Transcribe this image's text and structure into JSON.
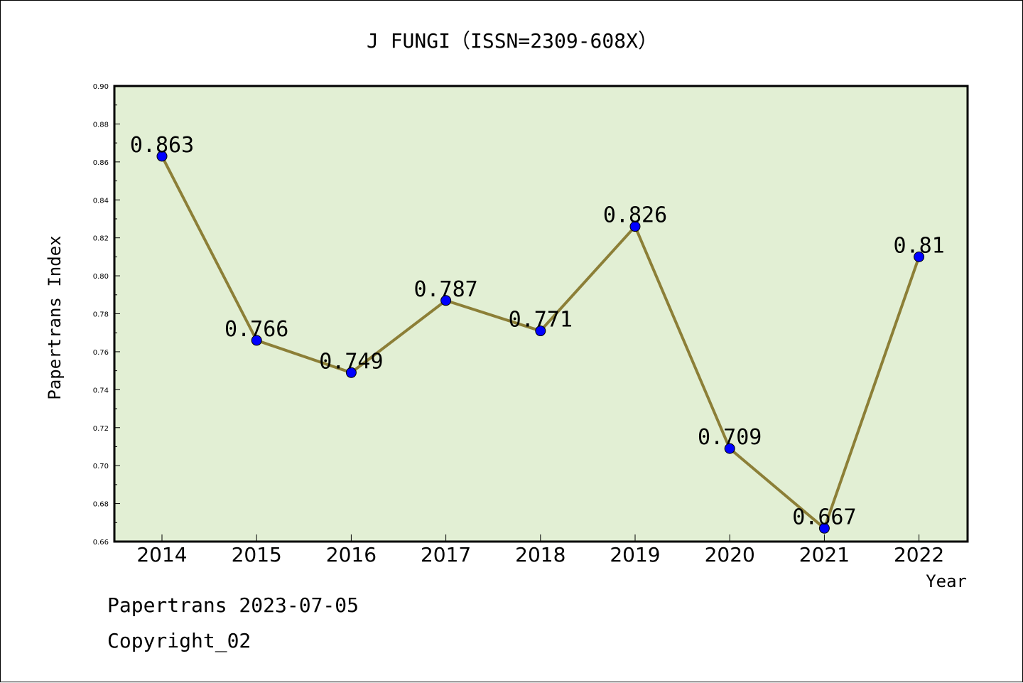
{
  "chart_data": {
    "type": "line",
    "title": "J FUNGI（ISSN=2309-608X）",
    "xlabel": "Year",
    "ylabel": "Papertrans Index",
    "categories": [
      "2014",
      "2015",
      "2016",
      "2017",
      "2018",
      "2019",
      "2020",
      "2021",
      "2022"
    ],
    "series": [
      {
        "values": [
          0.863,
          0.766,
          0.749,
          0.787,
          0.771,
          0.826,
          0.709,
          0.667,
          0.81
        ]
      }
    ],
    "data_labels": [
      "0.863",
      "0.766",
      "0.749",
      "0.787",
      "0.771",
      "0.826",
      "0.709",
      "0.667",
      "0.81"
    ],
    "ylim": [
      0.66,
      0.9
    ],
    "yticks": [
      "0.66",
      "0.68",
      "0.70",
      "0.72",
      "0.74",
      "0.76",
      "0.78",
      "0.80",
      "0.82",
      "0.84",
      "0.86",
      "0.88",
      "0.90"
    ],
    "grid": false,
    "legend": "none",
    "colors": {
      "plot_background": "#e2efd4",
      "line": "#8c7f37",
      "marker": "#0000ff"
    }
  },
  "footer": {
    "line1": "Papertrans 2023-07-05",
    "line2": "Copyright_02"
  }
}
